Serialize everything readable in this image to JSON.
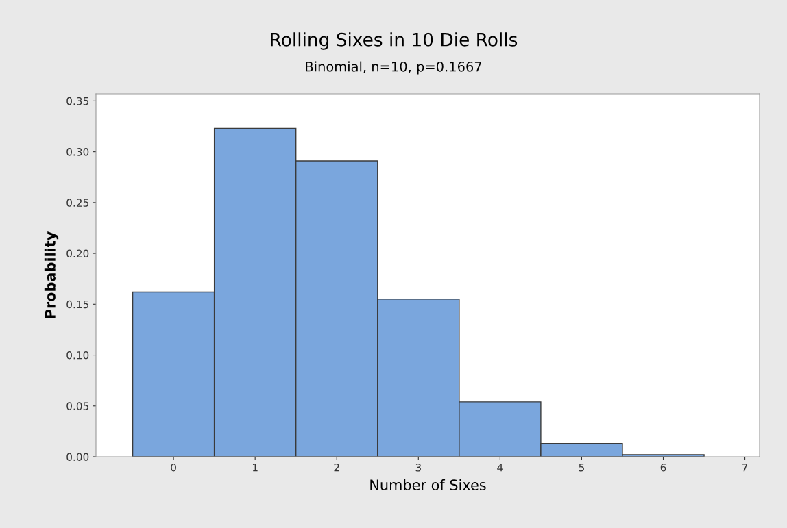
{
  "chart_data": {
    "type": "histogram",
    "title": "Rolling Sixes in 10 Die Rolls",
    "subtitle": "Binomial, n=10, p=0.1667",
    "xlabel": "Number of Sixes",
    "ylabel": "Probability",
    "bins": [
      -0.5,
      0.5,
      1.5,
      2.5,
      3.5,
      4.5,
      5.5,
      6.5
    ],
    "values": [
      0.162,
      0.323,
      0.291,
      0.155,
      0.054,
      0.013,
      0.002
    ],
    "color": "#7aa6dd",
    "xlim": [
      -0.95,
      7.18
    ],
    "xticks": [
      0,
      1,
      2,
      3,
      4,
      5,
      6,
      7
    ],
    "ylim": [
      0,
      0.357
    ],
    "yticks": [
      {
        "value": 0,
        "label": "0.00"
      },
      {
        "value": 0.05,
        "label": "0.05"
      },
      {
        "value": 0.1,
        "label": "0.10"
      },
      {
        "value": 0.15,
        "label": "0.15"
      },
      {
        "value": 0.2,
        "label": "0.20"
      },
      {
        "value": 0.25,
        "label": "0.25"
      },
      {
        "value": 0.3,
        "label": "0.30"
      },
      {
        "value": 0.35,
        "label": "0.35"
      }
    ],
    "grid": false,
    "legend": false
  }
}
